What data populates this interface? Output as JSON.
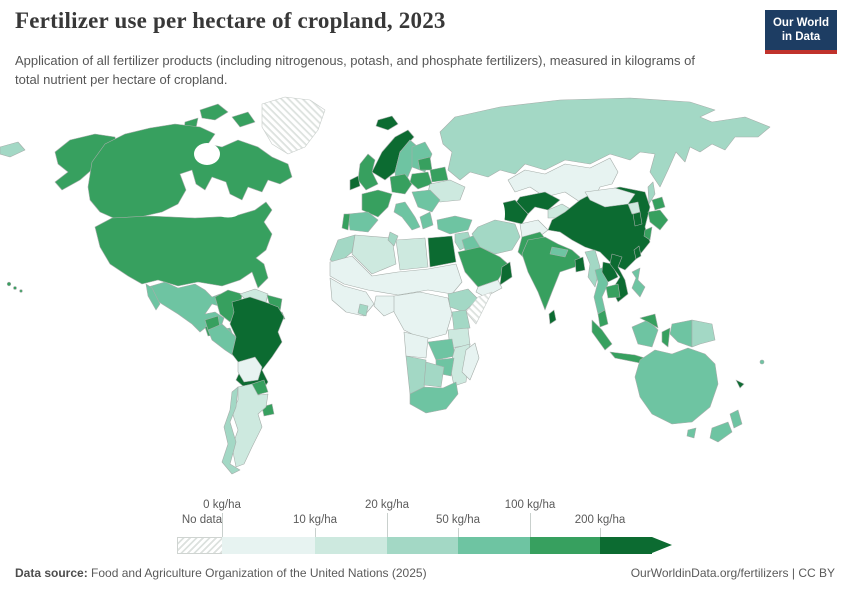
{
  "header": {
    "title": "Fertilizer use per hectare of cropland, 2023",
    "subtitle": "Application of all fertilizer products (including nitrogenous, potash, and phosphate fertilizers), measured in kilograms of total nutrient per hectare of cropland.",
    "logo_line1": "Our World",
    "logo_line2": "in Data",
    "logo_bg_color": "#1d3d63",
    "logo_accent_color": "#c0322c"
  },
  "legend": {
    "no_data_label": "No data",
    "ticks": [
      "0 kg/ha",
      "10 kg/ha",
      "20 kg/ha",
      "50 kg/ha",
      "100 kg/ha",
      "200 kg/ha"
    ]
  },
  "footer": {
    "source_label": "Data source:",
    "source_text": "Food and Agriculture Organization of the United Nations (2025)",
    "link_text": "OurWorldinData.org/fertilizers | CC BY"
  },
  "chart_data": {
    "type": "choropleth",
    "title": "Fertilizer use per hectare of cropland",
    "year": "2023",
    "unit": "kg/ha",
    "legend_position": "bottom",
    "no_data": {
      "id": "no-data",
      "label": "No data",
      "pattern": "diagonal-hatch"
    },
    "bins": [
      {
        "id": "0-10",
        "min": 0,
        "max": 10,
        "color": "#e7f3f1"
      },
      {
        "id": "10-20",
        "min": 10,
        "max": 20,
        "color": "#cde9df"
      },
      {
        "id": "20-50",
        "min": 20,
        "max": 50,
        "color": "#a3d8c5"
      },
      {
        "id": "50-100",
        "min": 50,
        "max": 100,
        "color": "#6ec4a2"
      },
      {
        "id": "100-200",
        "min": 100,
        "max": 200,
        "color": "#37a05f"
      },
      {
        "id": "200+",
        "min": 200,
        "max": null,
        "color": "#0c6b31"
      }
    ],
    "countries": {
      "United States": "100-200",
      "Canada": "100-200",
      "Greenland": "no-data",
      "Mexico": "50-100",
      "Guatemala": "100-200",
      "Honduras": "50-100",
      "Nicaragua": "50-100",
      "Costa Rica": "200+",
      "Panama": "100-200",
      "Cuba": "0-10",
      "Dominican Republic": "100-200",
      "Colombia": "100-200",
      "Venezuela": "10-20",
      "Guyana": "100-200",
      "Ecuador": "100-200",
      "Peru": "50-100",
      "Brazil": "200+",
      "Bolivia": "0-10",
      "Paraguay": "100-200",
      "Uruguay": "100-200",
      "Argentina": "10-20",
      "Chile": "20-50",
      "Iceland": "200+",
      "Norway": "200+",
      "Sweden": "50-100",
      "Finland": "50-100",
      "United Kingdom": "100-200",
      "Ireland": "200+",
      "France": "100-200",
      "Spain": "50-100",
      "Portugal": "100-200",
      "Germany": "100-200",
      "Poland": "100-200",
      "Italy": "50-100",
      "Balkans": "50-100",
      "Greece": "50-100",
      "Ukraine": "10-20",
      "Belarus": "100-200",
      "Baltic states": "100-200",
      "Russia": "20-50",
      "Kazakhstan": "0-10",
      "Uzbekistan": "200+",
      "Turkmenistan": "200+",
      "Kyrgyzstan": "10-20",
      "Turkey": "50-100",
      "Syria": "20-50",
      "Iraq": "50-100",
      "Saudi Arabia": "100-200",
      "Yemen": "0-10",
      "Oman": "200+",
      "Iran": "20-50",
      "Afghanistan": "0-10",
      "Pakistan": "100-200",
      "Morocco": "20-50",
      "Tunisia": "20-50",
      "Algeria": "10-20",
      "Libya": "10-20",
      "Egypt": "200+",
      "Sahel belt": "0-10",
      "West Africa": "0-10",
      "Ghana": "20-50",
      "Nigeria": "0-10",
      "Central Africa": "0-10",
      "Ethiopia": "20-50",
      "Somalia": "no-data",
      "Kenya": "20-50",
      "Tanzania": "10-20",
      "Angola": "0-10",
      "Zambia": "50-100",
      "Zimbabwe": "50-100",
      "Mozambique": "10-20",
      "Namibia": "20-50",
      "Botswana": "20-50",
      "South Africa": "50-100",
      "Madagascar": "0-10",
      "Mongolia": "0-10",
      "China": "200+",
      "India": "100-200",
      "Nepal": "50-100",
      "Bangladesh": "200+",
      "Sri Lanka": "200+",
      "Myanmar": "20-50",
      "Thailand": "50-100",
      "Laos": "200+",
      "Vietnam": "200+",
      "Cambodia": "100-200",
      "Malaysia": "100-200",
      "Indonesia": "100-200",
      "Indonesia (Kalimantan)": "50-100",
      "Indonesia (Papua)": "50-100",
      "Papua New Guinea": "20-50",
      "Philippines": "50-100",
      "Taiwan": "200+",
      "Japan": "100-200",
      "South Korea": "200+",
      "North Korea": "10-20",
      "Australia": "50-100",
      "New Zealand": "50-100",
      "Fiji": "50-100",
      "New Caledonia": "200+"
    }
  }
}
